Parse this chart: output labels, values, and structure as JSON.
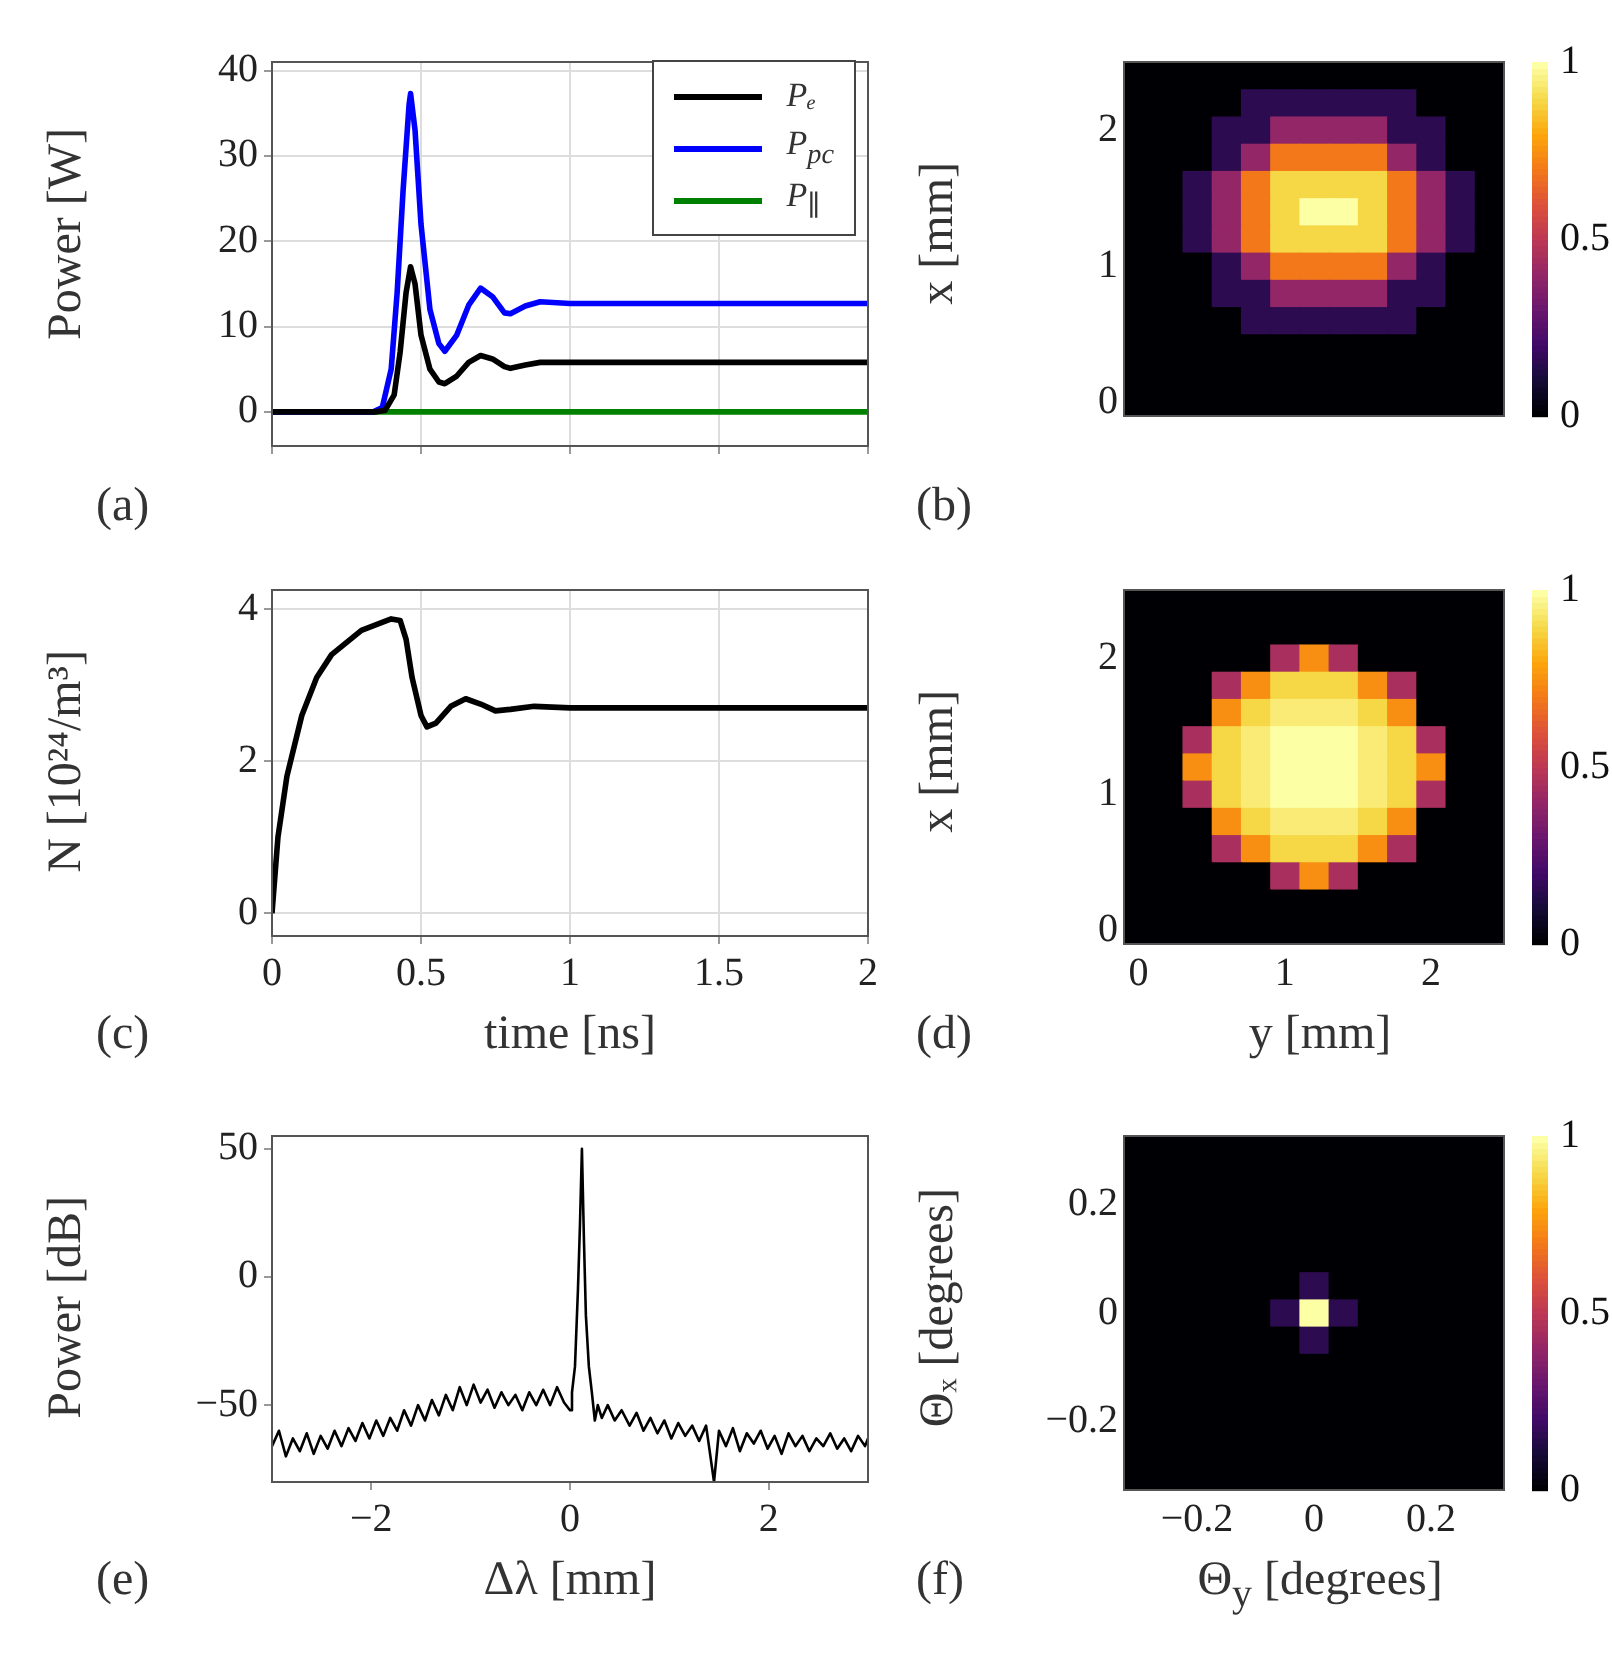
{
  "chart_data": [
    {
      "type": "line",
      "ylabel": "Power [W]",
      "annotations": [
        "(a)"
      ],
      "xlim": [
        0,
        2
      ],
      "xticks": [
        0,
        0.5,
        1,
        1.5,
        2
      ],
      "ylim": [
        -4,
        41
      ],
      "yticks": [
        0,
        10,
        20,
        30,
        40
      ],
      "grid": true,
      "legend": "top right",
      "tick_labels": "y",
      "series": [
        {
          "name": "Pₑ",
          "color": "#000000",
          "x": [
            0,
            0.35,
            0.38,
            0.41,
            0.43,
            0.45,
            0.465,
            0.48,
            0.5,
            0.53,
            0.56,
            0.58,
            0.62,
            0.66,
            0.7,
            0.74,
            0.78,
            0.8,
            0.85,
            0.9,
            0.95,
            1.2,
            2
          ],
          "values": [
            0,
            0,
            0.2,
            2,
            7,
            14,
            17,
            15,
            9,
            5,
            3.5,
            3.3,
            4.2,
            5.8,
            6.6,
            6.2,
            5.3,
            5.1,
            5.5,
            5.8,
            5.8,
            5.8,
            5.8
          ]
        },
        {
          "name": "P$_{pc}$",
          "color": "#0000ff",
          "x": [
            0,
            0.34,
            0.37,
            0.4,
            0.42,
            0.44,
            0.46,
            0.465,
            0.48,
            0.5,
            0.53,
            0.56,
            0.58,
            0.62,
            0.66,
            0.7,
            0.74,
            0.78,
            0.8,
            0.85,
            0.9,
            1,
            2
          ],
          "values": [
            0,
            0,
            0.5,
            5,
            14,
            26,
            36,
            37.3,
            33,
            22,
            12,
            8,
            7.1,
            9,
            12.5,
            14.5,
            13.5,
            11.6,
            11.5,
            12.4,
            12.9,
            12.7,
            12.7
          ]
        },
        {
          "name": "P$_{∥}$",
          "color": "#008000",
          "x": [
            0,
            2
          ],
          "values": [
            0,
            0
          ]
        }
      ]
    },
    {
      "type": "heatmap",
      "ylabel": "x [mm]",
      "annotations": [
        "(b)"
      ],
      "clim": [
        0,
        1
      ],
      "cticks": [
        0,
        0.5,
        1
      ],
      "categories": [
        null,
        null,
        null,
        null,
        null,
        null,
        null,
        null,
        null,
        null,
        null,
        null,
        null
      ],
      "y_categories": [
        null,
        null,
        "2",
        null,
        null,
        null,
        null,
        "1",
        null,
        null,
        null,
        null,
        "0"
      ],
      "cells": [
        [
          0,
          0,
          0,
          0,
          0,
          0,
          0,
          0,
          0,
          0,
          0,
          0,
          0
        ],
        [
          0,
          0,
          0,
          0,
          0.15,
          0.15,
          0.15,
          0.15,
          0.15,
          0.15,
          0,
          0,
          0
        ],
        [
          0,
          0,
          0,
          0.15,
          0.15,
          0.4,
          0.4,
          0.4,
          0.4,
          0.15,
          0.15,
          0,
          0
        ],
        [
          0,
          0,
          0,
          0.15,
          0.4,
          0.7,
          0.7,
          0.7,
          0.7,
          0.4,
          0.15,
          0,
          0
        ],
        [
          0,
          0,
          0.15,
          0.4,
          0.7,
          0.9,
          0.9,
          0.9,
          0.9,
          0.7,
          0.4,
          0.15,
          0
        ],
        [
          0,
          0,
          0.15,
          0.4,
          0.7,
          0.9,
          1,
          1,
          0.9,
          0.7,
          0.4,
          0.15,
          0
        ],
        [
          0,
          0,
          0.15,
          0.4,
          0.7,
          0.9,
          0.9,
          0.9,
          0.9,
          0.7,
          0.4,
          0.15,
          0
        ],
        [
          0,
          0,
          0,
          0.15,
          0.4,
          0.7,
          0.7,
          0.7,
          0.7,
          0.4,
          0.15,
          0,
          0
        ],
        [
          0,
          0,
          0,
          0.15,
          0.15,
          0.4,
          0.4,
          0.4,
          0.4,
          0.15,
          0.15,
          0,
          0
        ],
        [
          0,
          0,
          0,
          0,
          0.15,
          0.15,
          0.15,
          0.15,
          0.15,
          0.15,
          0,
          0,
          0
        ],
        [
          0,
          0,
          0,
          0,
          0,
          0,
          0,
          0,
          0,
          0,
          0,
          0,
          0
        ],
        [
          0,
          0,
          0,
          0,
          0,
          0,
          0,
          0,
          0,
          0,
          0,
          0,
          0
        ],
        [
          0,
          0,
          0,
          0,
          0,
          0,
          0,
          0,
          0,
          0,
          0,
          0,
          0
        ]
      ]
    },
    {
      "type": "line",
      "xlabel": "time [ns]",
      "ylabel": "N [10²⁴/m³]",
      "annotations": [
        "(c)"
      ],
      "xlim": [
        0,
        2
      ],
      "xticks": [
        0,
        0.5,
        1,
        1.5,
        2
      ],
      "ylim": [
        -0.3,
        4.25
      ],
      "yticks": [
        0,
        2,
        4
      ],
      "grid": true,
      "series": [
        {
          "color": "#000000",
          "x": [
            0,
            0.02,
            0.05,
            0.1,
            0.15,
            0.2,
            0.3,
            0.4,
            0.43,
            0.45,
            0.47,
            0.5,
            0.52,
            0.55,
            0.6,
            0.65,
            0.7,
            0.75,
            0.8,
            0.88,
            1,
            2
          ],
          "values": [
            0,
            1,
            1.8,
            2.6,
            3.1,
            3.4,
            3.72,
            3.87,
            3.85,
            3.6,
            3.1,
            2.6,
            2.45,
            2.5,
            2.72,
            2.82,
            2.75,
            2.66,
            2.68,
            2.72,
            2.7,
            2.7
          ]
        }
      ]
    },
    {
      "type": "heatmap",
      "xlabel": "y [mm]",
      "ylabel": "x [mm]",
      "annotations": [
        "(d)"
      ],
      "clim": [
        0,
        1
      ],
      "cticks": [
        0,
        0.5,
        1
      ],
      "categories": [
        "0",
        null,
        null,
        null,
        null,
        "1",
        null,
        null,
        null,
        null,
        "2",
        null,
        null
      ],
      "y_categories": [
        null,
        null,
        "2",
        null,
        null,
        null,
        null,
        "1",
        null,
        null,
        null,
        null,
        "0"
      ],
      "cells": [
        [
          0,
          0,
          0,
          0,
          0,
          0,
          0,
          0,
          0,
          0,
          0,
          0,
          0
        ],
        [
          0,
          0,
          0,
          0,
          0,
          0,
          0,
          0,
          0,
          0,
          0,
          0,
          0
        ],
        [
          0,
          0,
          0,
          0,
          0,
          0.45,
          0.75,
          0.45,
          0,
          0,
          0,
          0,
          0
        ],
        [
          0,
          0,
          0,
          0.45,
          0.75,
          0.9,
          0.9,
          0.9,
          0.75,
          0.45,
          0,
          0,
          0
        ],
        [
          0,
          0,
          0,
          0.75,
          0.9,
          0.95,
          0.95,
          0.95,
          0.9,
          0.75,
          0,
          0,
          0
        ],
        [
          0,
          0,
          0.45,
          0.9,
          0.95,
          1,
          1,
          1,
          0.95,
          0.9,
          0.45,
          0,
          0
        ],
        [
          0,
          0,
          0.75,
          0.9,
          0.95,
          1,
          1,
          1,
          0.95,
          0.9,
          0.75,
          0,
          0
        ],
        [
          0,
          0,
          0.45,
          0.9,
          0.95,
          1,
          1,
          1,
          0.95,
          0.9,
          0.45,
          0,
          0
        ],
        [
          0,
          0,
          0,
          0.75,
          0.9,
          0.95,
          0.95,
          0.95,
          0.9,
          0.75,
          0,
          0,
          0
        ],
        [
          0,
          0,
          0,
          0.45,
          0.75,
          0.9,
          0.9,
          0.9,
          0.75,
          0.45,
          0,
          0,
          0
        ],
        [
          0,
          0,
          0,
          0,
          0,
          0.45,
          0.75,
          0.45,
          0,
          0,
          0,
          0,
          0
        ],
        [
          0,
          0,
          0,
          0,
          0,
          0,
          0,
          0,
          0,
          0,
          0,
          0,
          0
        ],
        [
          0,
          0,
          0,
          0,
          0,
          0,
          0,
          0,
          0,
          0,
          0,
          0,
          0
        ]
      ]
    },
    {
      "type": "line",
      "xlabel": "Δλ [mm]",
      "ylabel": "Power [dB]",
      "annotations": [
        "(e)"
      ],
      "xlim": [
        -3,
        3
      ],
      "xticks": [
        -2,
        0,
        2
      ],
      "ylim": [
        -80,
        55
      ],
      "yticks": [
        -50,
        0,
        50
      ],
      "series": [
        {
          "color": "#000000",
          "x": [
            -3,
            -2.93,
            -2.86,
            -2.79,
            -2.72,
            -2.65,
            -2.58,
            -2.51,
            -2.44,
            -2.37,
            -2.3,
            -2.23,
            -2.16,
            -2.09,
            -2.02,
            -1.95,
            -1.88,
            -1.81,
            -1.74,
            -1.67,
            -1.6,
            -1.53,
            -1.46,
            -1.39,
            -1.32,
            -1.25,
            -1.18,
            -1.11,
            -1.04,
            -0.97,
            -0.9,
            -0.83,
            -0.76,
            -0.69,
            -0.62,
            -0.55,
            -0.48,
            -0.41,
            -0.34,
            -0.27,
            -0.2,
            -0.13,
            -0.06,
            0,
            0.02,
            0.05,
            0.08,
            0.1,
            0.12,
            0.14,
            0.16,
            0.19,
            0.22,
            0.25,
            0.28,
            0.32,
            0.38,
            0.45,
            0.52,
            0.6,
            0.67,
            0.74,
            0.81,
            0.88,
            0.95,
            1.02,
            1.09,
            1.16,
            1.23,
            1.3,
            1.37,
            1.45,
            1.5,
            1.57,
            1.64,
            1.71,
            1.78,
            1.85,
            1.92,
            1.99,
            2.06,
            2.13,
            2.2,
            2.27,
            2.34,
            2.41,
            2.48,
            2.55,
            2.62,
            2.69,
            2.76,
            2.83,
            2.9,
            2.97,
            3
          ],
          "values": [
            -66,
            -60,
            -70,
            -63,
            -68,
            -61,
            -69,
            -62,
            -67,
            -60,
            -66,
            -59,
            -64,
            -57,
            -63,
            -56,
            -62,
            -55,
            -60,
            -52,
            -58,
            -50,
            -56,
            -48,
            -54,
            -46,
            -52,
            -43,
            -50,
            -42,
            -49,
            -44,
            -51,
            -45,
            -50,
            -46,
            -52,
            -45,
            -50,
            -44,
            -50,
            -43,
            -49,
            -52,
            -45,
            -35,
            -5,
            20,
            50,
            15,
            -15,
            -35,
            -45,
            -56,
            -50,
            -55,
            -50,
            -56,
            -52,
            -58,
            -53,
            -60,
            -55,
            -61,
            -56,
            -63,
            -57,
            -62,
            -58,
            -64,
            -58,
            -80,
            -60,
            -66,
            -59,
            -68,
            -61,
            -65,
            -60,
            -67,
            -62,
            -69,
            -61,
            -66,
            -62,
            -68,
            -63,
            -66,
            -61,
            -67,
            -63,
            -68,
            -62,
            -66,
            -63
          ]
        }
      ]
    },
    {
      "type": "heatmap",
      "xlabel": "Θ$_{y}$ [degrees]",
      "ylabel": "Θₓ [degrees]",
      "annotations": [
        "(f)"
      ],
      "clim": [
        0,
        1
      ],
      "cticks": [
        0,
        0.5,
        1
      ],
      "categories": [
        null,
        null,
        "−0.2",
        null,
        null,
        null,
        "0",
        null,
        null,
        null,
        "0.2",
        null,
        null
      ],
      "y_categories": [
        null,
        null,
        "0.2",
        null,
        null,
        null,
        "0",
        null,
        null,
        null,
        "−0.2",
        null,
        null
      ],
      "cells": [
        [
          0,
          0,
          0,
          0,
          0,
          0,
          0,
          0,
          0,
          0,
          0,
          0,
          0
        ],
        [
          0,
          0,
          0,
          0,
          0,
          0,
          0,
          0,
          0,
          0,
          0,
          0,
          0
        ],
        [
          0,
          0,
          0,
          0,
          0,
          0,
          0,
          0,
          0,
          0,
          0,
          0,
          0
        ],
        [
          0,
          0,
          0,
          0,
          0,
          0,
          0,
          0,
          0,
          0,
          0,
          0,
          0
        ],
        [
          0,
          0,
          0,
          0,
          0,
          0,
          0,
          0,
          0,
          0,
          0,
          0,
          0
        ],
        [
          0,
          0,
          0,
          0,
          0,
          0,
          0.15,
          0,
          0,
          0,
          0,
          0,
          0
        ],
        [
          0,
          0,
          0,
          0,
          0,
          0.15,
          1,
          0.15,
          0,
          0,
          0,
          0,
          0
        ],
        [
          0,
          0,
          0,
          0,
          0,
          0,
          0.15,
          0,
          0,
          0,
          0,
          0,
          0
        ],
        [
          0,
          0,
          0,
          0,
          0,
          0,
          0,
          0,
          0,
          0,
          0,
          0,
          0
        ],
        [
          0,
          0,
          0,
          0,
          0,
          0,
          0,
          0,
          0,
          0,
          0,
          0,
          0
        ],
        [
          0,
          0,
          0,
          0,
          0,
          0,
          0,
          0,
          0,
          0,
          0,
          0,
          0
        ],
        [
          0,
          0,
          0,
          0,
          0,
          0,
          0,
          0,
          0,
          0,
          0,
          0,
          0
        ],
        [
          0,
          0,
          0,
          0,
          0,
          0,
          0,
          0,
          0,
          0,
          0,
          0,
          0
        ]
      ]
    }
  ]
}
